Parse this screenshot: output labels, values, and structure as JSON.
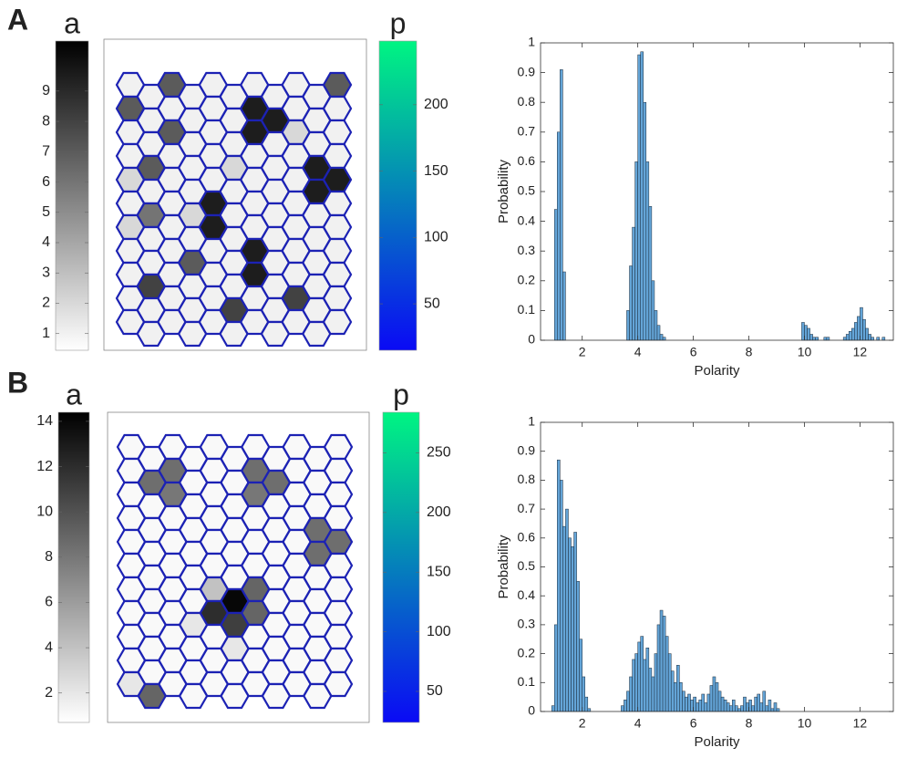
{
  "panels": [
    {
      "label": "A",
      "colorbar_a": {
        "title": "a",
        "clim": [
          0.45,
          10.65
        ],
        "ticks": [
          1,
          2,
          3,
          4,
          5,
          6,
          7,
          8,
          9
        ],
        "colors": [
          "#ffffff",
          "#000000"
        ]
      },
      "colorbar_p": {
        "title": "p",
        "clim": [
          15,
          248
        ],
        "ticks": [
          50,
          100,
          150,
          200
        ],
        "colors": [
          "#0a0af5",
          "#00f582"
        ]
      },
      "lattice": {
        "edge_color": "#1c22b4",
        "cells": [
          [
            1,
            1,
            7,
            1,
            1,
            1,
            1,
            1,
            1,
            1,
            7
          ],
          [
            7,
            1,
            1,
            1,
            1,
            1,
            9.5,
            9.5,
            1,
            1,
            1
          ],
          [
            1,
            1,
            7,
            1,
            1,
            1,
            9.5,
            1,
            2,
            1,
            1
          ],
          [
            1,
            7,
            1,
            1,
            1,
            2,
            1,
            1,
            1,
            9.5,
            1
          ],
          [
            2,
            1,
            1,
            1,
            1,
            1,
            1,
            1,
            1,
            9.5,
            9.5
          ],
          [
            1,
            6,
            1,
            2,
            9.5,
            1,
            1,
            1,
            1,
            1,
            1
          ],
          [
            2,
            1,
            1,
            1,
            9.5,
            1,
            1,
            1,
            1,
            1,
            1
          ],
          [
            1,
            1,
            1,
            7,
            1,
            1,
            9.5,
            1,
            1,
            1,
            1
          ],
          [
            1,
            8,
            1,
            1,
            1,
            1,
            9.5,
            1,
            1,
            1,
            1
          ],
          [
            1,
            1,
            1,
            1,
            1,
            8,
            1,
            1,
            8,
            1,
            1
          ],
          [
            1,
            1,
            1,
            1,
            1,
            1,
            1,
            1,
            1,
            1,
            1
          ]
        ]
      }
    },
    {
      "label": "B",
      "colorbar_a": {
        "title": "a",
        "clim": [
          0.7,
          14.4
        ],
        "ticks": [
          2,
          4,
          6,
          8,
          10,
          12,
          14
        ],
        "colors": [
          "#ffffff",
          "#000000"
        ]
      },
      "colorbar_p": {
        "title": "p",
        "clim": [
          24,
          284
        ],
        "ticks": [
          50,
          100,
          150,
          200,
          250
        ],
        "colors": [
          "#0a0af5",
          "#00f582"
        ]
      },
      "lattice": {
        "edge_color": "#1c22b4",
        "cells": [
          [
            1,
            1,
            1,
            1,
            1,
            1,
            1,
            1,
            1,
            1,
            1
          ],
          [
            1,
            8.5,
            8.5,
            1,
            1,
            1,
            8.5,
            8.5,
            1,
            1,
            1
          ],
          [
            1,
            1,
            8,
            1,
            1,
            1,
            8,
            1,
            1,
            1,
            1
          ],
          [
            1,
            1,
            1,
            1,
            1,
            1,
            1,
            1,
            1,
            8.5,
            1
          ],
          [
            1,
            1,
            1,
            1,
            1,
            1,
            1,
            1,
            1,
            8.5,
            8.5
          ],
          [
            1,
            1,
            1,
            1,
            1,
            1,
            1,
            1,
            1,
            1,
            1
          ],
          [
            1,
            1,
            1,
            1,
            4,
            14,
            9,
            1,
            1,
            1,
            1
          ],
          [
            1,
            1,
            1,
            2,
            12,
            11,
            9,
            1,
            1,
            1,
            1
          ],
          [
            1,
            1,
            1,
            1,
            1,
            2,
            1,
            1,
            1,
            1,
            1
          ],
          [
            1,
            1,
            1,
            1,
            1,
            1,
            1,
            1,
            1,
            1,
            1
          ],
          [
            2,
            9,
            1,
            1,
            1,
            1,
            1,
            1,
            1,
            1,
            1
          ]
        ]
      }
    }
  ],
  "chart_data": [
    {
      "type": "histogram",
      "x_label": "Polarity",
      "y_label": "Probability",
      "color": "#64a5d8",
      "edge_color": "#1a2a3a",
      "xlim": [
        0.5,
        13.2
      ],
      "xticks": [
        2,
        4,
        6,
        8,
        10,
        12
      ],
      "ylim": [
        0,
        1
      ],
      "yticks": [
        0,
        0.1,
        0.2,
        0.3,
        0.4,
        0.5,
        0.6,
        0.7,
        0.8,
        0.9,
        1
      ],
      "bins": [
        1,
        1.1,
        1.2,
        1.3,
        1.4,
        1.5,
        1.6,
        1.7,
        1.8,
        1.9,
        2,
        2.1,
        2.2,
        2.3,
        2.4,
        2.5,
        2.6,
        2.7,
        2.8,
        2.9,
        3,
        3.1,
        3.2,
        3.3,
        3.4,
        3.5,
        3.6,
        3.7,
        3.8,
        3.9,
        4,
        4.1,
        4.2,
        4.3,
        4.4,
        4.5,
        4.6,
        4.7,
        4.8,
        4.9,
        5,
        5.1,
        5.2,
        5.3,
        5.4,
        5.5,
        5.6,
        5.7,
        5.8,
        5.9,
        6,
        6.1,
        6.2,
        6.3,
        6.4,
        6.5,
        6.6,
        6.7,
        6.8,
        6.9,
        7,
        7.1,
        7.2,
        7.3,
        7.4,
        7.5,
        7.6,
        7.7,
        7.8,
        7.9,
        8,
        8.1,
        8.2,
        8.3,
        8.4,
        8.5,
        8.6,
        8.7,
        8.8,
        8.9,
        9,
        9.1,
        9.2,
        9.3,
        9.4,
        9.5,
        9.6,
        9.7,
        9.8,
        9.9,
        10,
        10.1,
        10.2,
        10.3,
        10.4,
        10.5,
        10.6,
        10.7,
        10.8,
        10.9,
        11,
        11.1,
        11.2,
        11.3,
        11.4,
        11.5,
        11.6,
        11.7,
        11.8,
        11.9,
        12,
        12.1,
        12.2,
        12.3,
        12.4,
        12.5,
        12.6,
        12.7,
        12.8,
        12.9,
        13
      ],
      "values": [
        0.44,
        0.7,
        0.91,
        0.23,
        0,
        0,
        0,
        0,
        0,
        0,
        0,
        0,
        0,
        0,
        0,
        0,
        0,
        0,
        0,
        0,
        0,
        0,
        0,
        0,
        0,
        0,
        0.1,
        0.25,
        0.38,
        0.6,
        0.96,
        0.97,
        0.8,
        0.6,
        0.45,
        0.2,
        0.1,
        0.05,
        0.02,
        0.01,
        0,
        0,
        0,
        0,
        0,
        0,
        0,
        0,
        0,
        0,
        0,
        0,
        0,
        0,
        0,
        0,
        0,
        0,
        0,
        0,
        0,
        0,
        0,
        0,
        0,
        0,
        0,
        0,
        0,
        0,
        0,
        0,
        0,
        0,
        0,
        0,
        0,
        0,
        0,
        0,
        0,
        0,
        0,
        0,
        0,
        0,
        0,
        0,
        0,
        0.06,
        0.05,
        0.04,
        0.02,
        0.01,
        0.01,
        0,
        0,
        0.01,
        0.01,
        0,
        0,
        0,
        0,
        0,
        0.01,
        0.02,
        0.03,
        0.04,
        0.06,
        0.08,
        0.11,
        0.07,
        0.04,
        0.02,
        0.01,
        0,
        0.01,
        0,
        0.01,
        0
      ]
    },
    {
      "type": "histogram",
      "x_label": "Polarity",
      "y_label": "Probability",
      "color": "#64a5d8",
      "edge_color": "#1a2a3a",
      "xlim": [
        0.5,
        13.2
      ],
      "xticks": [
        2,
        4,
        6,
        8,
        10,
        12
      ],
      "ylim": [
        0,
        1
      ],
      "yticks": [
        0,
        0.1,
        0.2,
        0.3,
        0.4,
        0.5,
        0.6,
        0.7,
        0.8,
        0.9,
        1
      ],
      "bins": [
        0.9,
        1,
        1.1,
        1.2,
        1.3,
        1.4,
        1.5,
        1.6,
        1.7,
        1.8,
        1.9,
        2,
        2.1,
        2.2,
        2.3,
        2.4,
        2.5,
        2.6,
        2.7,
        2.8,
        2.9,
        3,
        3.1,
        3.2,
        3.3,
        3.4,
        3.5,
        3.6,
        3.7,
        3.8,
        3.9,
        4,
        4.1,
        4.2,
        4.3,
        4.4,
        4.5,
        4.6,
        4.7,
        4.8,
        4.9,
        5,
        5.1,
        5.2,
        5.3,
        5.4,
        5.5,
        5.6,
        5.7,
        5.8,
        5.9,
        6,
        6.1,
        6.2,
        6.3,
        6.4,
        6.5,
        6.6,
        6.7,
        6.8,
        6.9,
        7,
        7.1,
        7.2,
        7.3,
        7.4,
        7.5,
        7.6,
        7.7,
        7.8,
        7.9,
        8,
        8.1,
        8.2,
        8.3,
        8.4,
        8.5,
        8.6,
        8.7,
        8.8,
        8.9,
        9,
        9.1
      ],
      "values": [
        0.02,
        0.3,
        0.87,
        0.8,
        0.64,
        0.7,
        0.6,
        0.57,
        0.62,
        0.45,
        0.25,
        0.12,
        0.05,
        0.01,
        0,
        0,
        0,
        0,
        0,
        0,
        0,
        0,
        0,
        0,
        0,
        0.02,
        0.04,
        0.07,
        0.12,
        0.18,
        0.2,
        0.24,
        0.26,
        0.18,
        0.22,
        0.15,
        0.12,
        0.2,
        0.3,
        0.35,
        0.33,
        0.26,
        0.2,
        0.14,
        0.1,
        0.16,
        0.1,
        0.07,
        0.05,
        0.06,
        0.04,
        0.05,
        0.03,
        0.04,
        0.06,
        0.03,
        0.06,
        0.09,
        0.12,
        0.1,
        0.07,
        0.05,
        0.04,
        0.03,
        0.02,
        0.04,
        0.02,
        0.01,
        0.02,
        0.05,
        0.03,
        0.04,
        0.02,
        0.05,
        0.06,
        0.03,
        0.07,
        0.02,
        0.04,
        0.01,
        0.03,
        0.01
      ]
    }
  ]
}
